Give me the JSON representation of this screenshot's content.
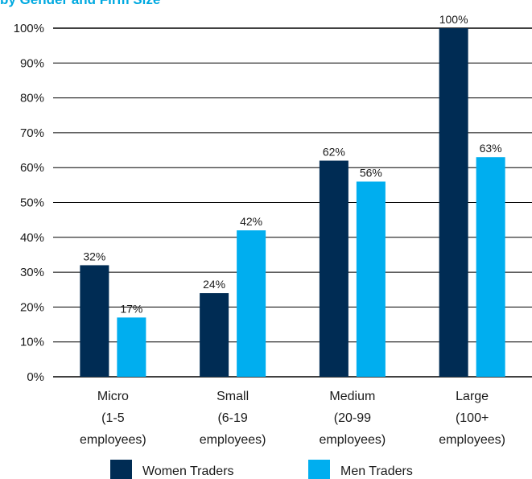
{
  "title": "by Gender and Firm Size",
  "colors": {
    "women": "#002c54",
    "men": "#00aeef",
    "grid": "#000000"
  },
  "chart_data": {
    "type": "bar",
    "title": "by Gender and Firm Size",
    "xlabel": "",
    "ylabel": "",
    "ylim": [
      0,
      100
    ],
    "y_ticks": [
      "0%",
      "10%",
      "20%",
      "30%",
      "40%",
      "50%",
      "60%",
      "70%",
      "80%",
      "90%",
      "100%"
    ],
    "grid": true,
    "legend_position": "bottom",
    "categories": [
      [
        "Micro",
        "(1-5",
        "employees)"
      ],
      [
        "Small",
        "(6-19",
        "employees)"
      ],
      [
        "Medium",
        "(20-99",
        "employees)"
      ],
      [
        "Large",
        "(100+",
        "employees)"
      ]
    ],
    "series": [
      {
        "name": "Women Traders",
        "values": [
          32,
          24,
          62,
          100
        ],
        "labels": [
          "32%",
          "24%",
          "62%",
          "100%"
        ]
      },
      {
        "name": "Men Traders",
        "values": [
          17,
          42,
          56,
          63
        ],
        "labels": [
          "17%",
          "42%",
          "56%",
          "63%"
        ]
      }
    ]
  }
}
